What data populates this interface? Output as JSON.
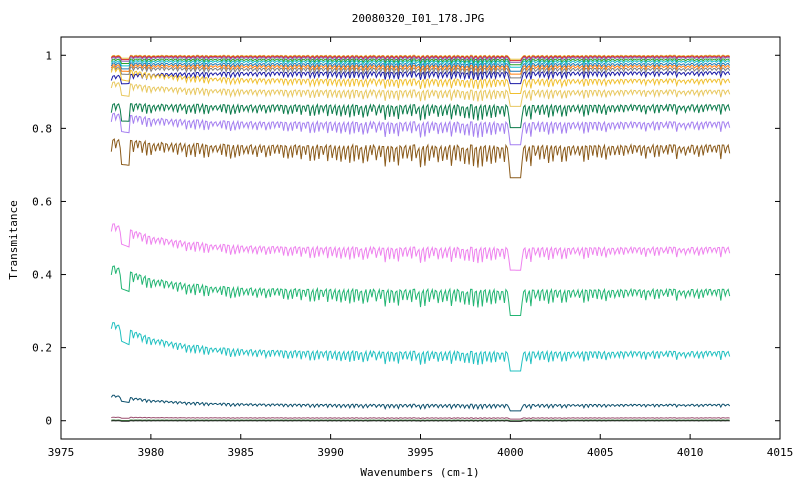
{
  "chart_data": {
    "type": "line",
    "title": "20080320_I01_178.JPG",
    "xlabel": "Wavenumbers (cm-1)",
    "ylabel": "Transmitance",
    "xlim": [
      3975,
      4015
    ],
    "ylim": [
      -0.05,
      1.05
    ],
    "x_ticks": [
      3975,
      3980,
      3985,
      3990,
      3995,
      4000,
      4005,
      4010,
      4015
    ],
    "y_ticks": [
      0,
      0.2,
      0.4,
      0.6,
      0.8,
      1
    ],
    "x_tick_labels": [
      "3975",
      "3980",
      "3985",
      "3990",
      "3995",
      "4000",
      "4005",
      "4010",
      "4015"
    ],
    "y_tick_labels": [
      "0",
      "0.2",
      "0.4",
      "0.6",
      "0.8",
      "1"
    ],
    "grid": false,
    "legend": "none",
    "x_range": [
      3977.8,
      4012.2
    ],
    "series": [
      {
        "color": "#e5c040",
        "baseline": 1.0,
        "start": 1.0,
        "depth": 0.006
      },
      {
        "color": "#d62728",
        "baseline": 0.998,
        "start": 0.998,
        "depth": 0.007
      },
      {
        "color": "#9467bd",
        "baseline": 0.995,
        "start": 0.995,
        "depth": 0.008
      },
      {
        "color": "#2ca02c",
        "baseline": 0.99,
        "start": 0.99,
        "depth": 0.009
      },
      {
        "color": "#17becf",
        "baseline": 0.985,
        "start": 0.985,
        "depth": 0.01
      },
      {
        "color": "#1f77b4",
        "baseline": 0.978,
        "start": 0.98,
        "depth": 0.012
      },
      {
        "color": "#ff7f0e",
        "baseline": 0.972,
        "start": 0.975,
        "depth": 0.013
      },
      {
        "color": "#7f7f7f",
        "baseline": 0.965,
        "start": 0.97,
        "depth": 0.015
      },
      {
        "color": "#1a1aa6",
        "baseline": 0.955,
        "start": 0.945,
        "depth": 0.018
      },
      {
        "color": "#f0c030",
        "baseline": 0.935,
        "start": 0.97,
        "depth": 0.022
      },
      {
        "color": "#e8c860",
        "baseline": 0.905,
        "start": 0.93,
        "depth": 0.025
      },
      {
        "color": "#0a7a4a",
        "baseline": 0.865,
        "start": 0.87,
        "depth": 0.035
      },
      {
        "color": "#a47ff0",
        "baseline": 0.818,
        "start": 0.845,
        "depth": 0.035
      },
      {
        "color": "#8a5a1a",
        "baseline": 0.755,
        "start": 0.775,
        "depth": 0.05
      },
      {
        "color": "#ee82ee",
        "baseline": 0.475,
        "start": 0.545,
        "depth": 0.035
      },
      {
        "color": "#22b573",
        "baseline": 0.36,
        "start": 0.43,
        "depth": 0.04
      },
      {
        "color": "#20c0c0",
        "baseline": 0.19,
        "start": 0.275,
        "depth": 0.03
      },
      {
        "color": "#0b4f6c",
        "baseline": 0.045,
        "start": 0.072,
        "depth": 0.01
      },
      {
        "color": "#9b4f6f",
        "baseline": 0.008,
        "start": 0.01,
        "depth": 0.002
      },
      {
        "color": "#3a7a3a",
        "baseline": 0.002,
        "start": 0.002,
        "depth": 0.001
      },
      {
        "color": "#222222",
        "baseline": 0.0,
        "start": 0.0,
        "depth": 0.001
      }
    ]
  }
}
